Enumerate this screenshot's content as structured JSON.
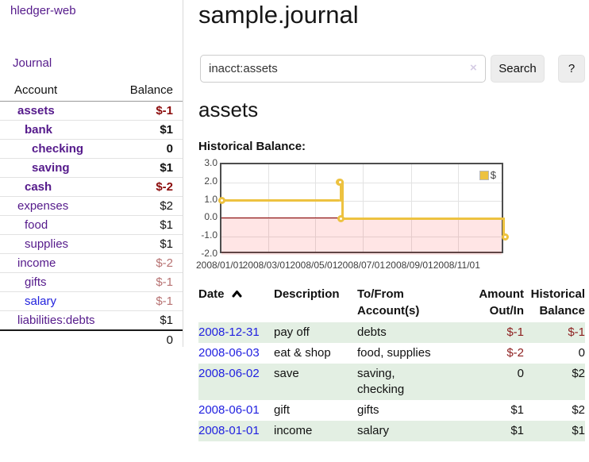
{
  "app": {
    "brand": "hledger-web",
    "nav_journal": "Journal"
  },
  "colors": {
    "purple_link": "#551a8b",
    "blue_link": "#2222dd",
    "negative_strong": "#8b0b0b",
    "negative_muted": "#b77272",
    "register_negative": "#8d1f1f",
    "row_green": "#e3efe3",
    "chart_line": "#edc240",
    "chart_zero_line": "#8b0000",
    "chart_negative_fill": "rgba(255,0,0,0.10)"
  },
  "sidebar": {
    "table_headers": {
      "account": "Account",
      "balance": "Balance"
    },
    "accounts": [
      {
        "name": "assets",
        "balance": "$-1",
        "depth": 1,
        "bold": true,
        "negative": "strong"
      },
      {
        "name": "bank",
        "balance": "$1",
        "depth": 2,
        "bold": true,
        "negative": "none"
      },
      {
        "name": "checking",
        "balance": "0",
        "depth": 3,
        "bold": true,
        "negative": "none"
      },
      {
        "name": "saving",
        "balance": "$1",
        "depth": 3,
        "bold": true,
        "negative": "none"
      },
      {
        "name": "cash",
        "balance": "$-2",
        "depth": 2,
        "bold": true,
        "negative": "strong"
      },
      {
        "name": "expenses",
        "balance": "$2",
        "depth": 1,
        "bold": false,
        "negative": "none"
      },
      {
        "name": "food",
        "balance": "$1",
        "depth": 2,
        "bold": false,
        "negative": "none"
      },
      {
        "name": "supplies",
        "balance": "$1",
        "depth": 2,
        "bold": false,
        "negative": "none"
      },
      {
        "name": "income",
        "balance": "$-2",
        "depth": 1,
        "bold": false,
        "negative": "muted"
      },
      {
        "name": "gifts",
        "balance": "$-1",
        "depth": 2,
        "bold": false,
        "negative": "muted"
      },
      {
        "name": "salary",
        "balance": "$-1",
        "depth": 2,
        "bold": false,
        "negative": "muted",
        "link_style": "unvisited"
      },
      {
        "name": "liabilities:debts",
        "balance": "$1",
        "depth": 1,
        "bold": false,
        "negative": "none"
      }
    ],
    "total": "0"
  },
  "header": {
    "title": "sample.journal"
  },
  "search": {
    "value": "inacct:assets",
    "clear_icon": "×",
    "button": "Search",
    "help_button": "?"
  },
  "account_page": {
    "title": "assets",
    "chart_label": "Historical Balance:"
  },
  "chart_data": {
    "type": "line",
    "step": true,
    "title": "Historical Balance",
    "series": [
      {
        "name": "$",
        "color": "#edc240",
        "points": [
          [
            "2008-01-01",
            1
          ],
          [
            "2008-06-01",
            2
          ],
          [
            "2008-06-02",
            2
          ],
          [
            "2008-06-03",
            0
          ],
          [
            "2008-12-31",
            -1
          ]
        ]
      }
    ],
    "ylim": [
      -2,
      3
    ],
    "yticks": [
      "3.0",
      "2.0",
      "1.0",
      "0.0",
      "-1.0",
      "-2.0"
    ],
    "ytick_values": [
      3,
      2,
      1,
      0,
      -1,
      -2
    ],
    "xticks": [
      "2008/01/01",
      "2008/03/01",
      "2008/05/01",
      "2008/07/01",
      "2008/09/01",
      "2008/11/01"
    ],
    "xrange": [
      "2008-01-01",
      "2008-12-31"
    ],
    "grid": true,
    "negative_region_shaded": true,
    "legend_position": "top-right"
  },
  "register": {
    "headers": [
      {
        "lines": [
          "Date"
        ],
        "align": "left",
        "sort_icon": true
      },
      {
        "lines": [
          "Description"
        ],
        "align": "left",
        "sort_icon": false
      },
      {
        "lines": [
          "To/From",
          "Account(s)"
        ],
        "align": "left",
        "sort_icon": false
      },
      {
        "lines": [
          "Amount",
          "Out/In"
        ],
        "align": "right",
        "sort_icon": false
      },
      {
        "lines": [
          "Historical",
          "Balance"
        ],
        "align": "right",
        "sort_icon": false
      }
    ],
    "rows": [
      {
        "date": "2008-12-31",
        "description": "pay off",
        "accounts": "debts",
        "amount": "$-1",
        "amount_negative": true,
        "balance": "$-1",
        "balance_negative": true,
        "green": true
      },
      {
        "date": "2008-06-03",
        "description": "eat & shop",
        "accounts": "food, supplies",
        "amount": "$-2",
        "amount_negative": true,
        "balance": "0",
        "balance_negative": false,
        "green": false
      },
      {
        "date": "2008-06-02",
        "description": "save",
        "accounts": "saving,\nchecking",
        "amount": "0",
        "amount_negative": false,
        "balance": "$2",
        "balance_negative": false,
        "green": true
      },
      {
        "date": "2008-06-01",
        "description": "gift",
        "accounts": "gifts",
        "amount": "$1",
        "amount_negative": false,
        "balance": "$2",
        "balance_negative": false,
        "green": false
      },
      {
        "date": "2008-01-01",
        "description": "income",
        "accounts": "salary",
        "amount": "$1",
        "amount_negative": false,
        "balance": "$1",
        "balance_negative": false,
        "green": true
      }
    ]
  }
}
